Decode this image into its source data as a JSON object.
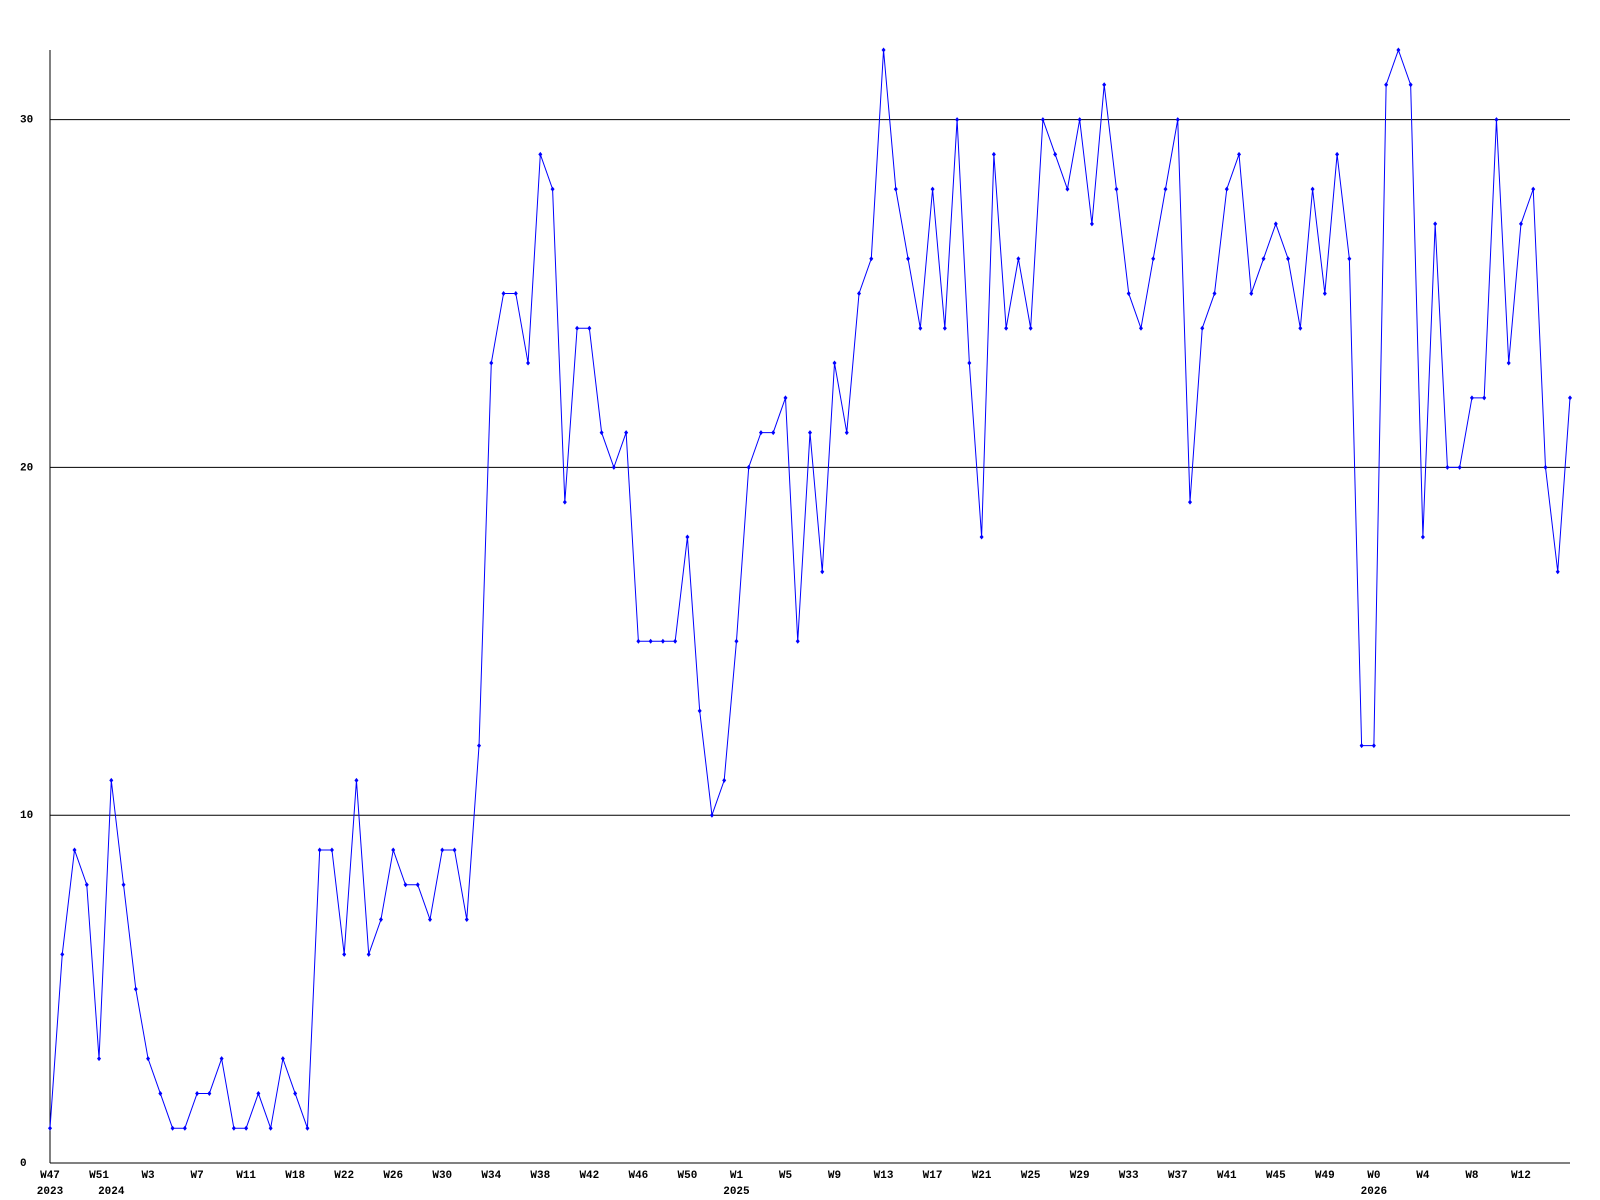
{
  "chart_data": {
    "type": "line",
    "categories": [
      "W47",
      null,
      null,
      null,
      "W51",
      null,
      null,
      null,
      "W3",
      null,
      null,
      null,
      "W7",
      null,
      null,
      null,
      "W11",
      null,
      null,
      null,
      "W18",
      null,
      null,
      null,
      "W22",
      null,
      null,
      null,
      "W26",
      null,
      null,
      null,
      "W30",
      null,
      null,
      null,
      "W34",
      null,
      null,
      null,
      "W38",
      null,
      null,
      null,
      "W42",
      null,
      null,
      null,
      "W46",
      null,
      null,
      null,
      "W50",
      null,
      null,
      null,
      "W1",
      null,
      null,
      null,
      "W5",
      null,
      null,
      null,
      "W9",
      null,
      null,
      null,
      "W13",
      null,
      null,
      null,
      "W17",
      null,
      null,
      null,
      "W21",
      null,
      null,
      null,
      "W25",
      null,
      null,
      null,
      "W29",
      null,
      null,
      null,
      "W33",
      null,
      null,
      null,
      "W37",
      null,
      null,
      null,
      "W41",
      null,
      null,
      null,
      "W45",
      null,
      null,
      null,
      "W49",
      null,
      null,
      null,
      "W0",
      null,
      null,
      null,
      "W4",
      null,
      null,
      null,
      "W8",
      null,
      null,
      null,
      "W12",
      null,
      null,
      null,
      null
    ],
    "years": [
      "2023",
      null,
      null,
      null,
      null,
      "2024",
      null,
      null,
      null,
      null,
      null,
      null,
      null,
      null,
      null,
      null,
      null,
      null,
      null,
      null,
      null,
      null,
      null,
      null,
      null,
      null,
      null,
      null,
      null,
      null,
      null,
      null,
      null,
      null,
      null,
      null,
      null,
      null,
      null,
      null,
      null,
      null,
      null,
      null,
      null,
      null,
      null,
      null,
      null,
      null,
      null,
      null,
      null,
      null,
      null,
      null,
      "2025",
      null,
      null,
      null,
      null,
      null,
      null,
      null,
      null,
      null,
      null,
      null,
      null,
      null,
      null,
      null,
      null,
      null,
      null,
      null,
      null,
      null,
      null,
      null,
      null,
      null,
      null,
      null,
      null,
      null,
      null,
      null,
      null,
      null,
      null,
      null,
      null,
      null,
      null,
      null,
      null,
      null,
      null,
      null,
      null,
      null,
      null,
      null,
      null,
      null,
      null,
      null,
      "2026",
      null,
      null,
      null,
      null,
      null,
      null,
      null,
      null,
      null,
      null,
      null,
      null,
      null,
      null,
      null,
      null
    ],
    "values": [
      1,
      6,
      9,
      8,
      3,
      11,
      8,
      5,
      3,
      2,
      1,
      1,
      2,
      2,
      3,
      1,
      1,
      2,
      1,
      3,
      2,
      1,
      9,
      9,
      6,
      11,
      6,
      7,
      9,
      8,
      8,
      7,
      9,
      9,
      7,
      12,
      23,
      25,
      25,
      23,
      29,
      28,
      19,
      24,
      24,
      21,
      20,
      21,
      15,
      15,
      15,
      15,
      18,
      13,
      10,
      11,
      15,
      20,
      21,
      21,
      22,
      15,
      21,
      17,
      23,
      21,
      25,
      26,
      32,
      28,
      26,
      24,
      28,
      24,
      30,
      23,
      18,
      29,
      24,
      26,
      24,
      30,
      29,
      28,
      30,
      27,
      31,
      28,
      25,
      24,
      26,
      28,
      30,
      19,
      24,
      25,
      28,
      29,
      25,
      26,
      27,
      26,
      24,
      28,
      25,
      29,
      26,
      12,
      12,
      31,
      32,
      31,
      18,
      27,
      20,
      20,
      22,
      22,
      30,
      23,
      27,
      28,
      20,
      17,
      22
    ],
    "color": "#0000ff",
    "grid_color": "#000000",
    "ylim": [
      0,
      32
    ],
    "yticks": [
      0,
      10,
      20,
      30
    ],
    "grid": true
  }
}
